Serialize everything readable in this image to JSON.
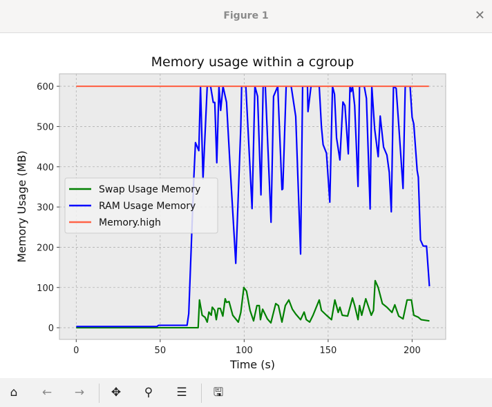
{
  "window": {
    "title": "Figure 1",
    "close_icon": "close-icon"
  },
  "toolbar": {
    "buttons": [
      "home-icon",
      "back-arrow-icon",
      "forward-arrow-icon",
      "pan-move-icon",
      "zoom-magnifier-icon",
      "configure-subplots-icon",
      "save-floppy-icon"
    ]
  },
  "chart_data": {
    "type": "line",
    "title": "Memory usage within a cgroup",
    "xlabel": "Time (s)",
    "ylabel": "Memory Usage (MB)",
    "xlim": [
      -10,
      220
    ],
    "ylim": [
      -29,
      631
    ],
    "xticks": [
      0,
      50,
      100,
      150,
      200
    ],
    "yticks": [
      0,
      100,
      200,
      300,
      400,
      500,
      600
    ],
    "grid": true,
    "legend_position": "center-left",
    "series": [
      {
        "name": "Swap Usage Memory",
        "color": "#008000",
        "points": [
          [
            0,
            0
          ],
          [
            72.6,
            0
          ],
          [
            73.4,
            69
          ],
          [
            75,
            31
          ],
          [
            76.7,
            26
          ],
          [
            78,
            14
          ],
          [
            79,
            39
          ],
          [
            80.4,
            31
          ],
          [
            81,
            51
          ],
          [
            82.5,
            43
          ],
          [
            83.4,
            20
          ],
          [
            84.5,
            48
          ],
          [
            85.8,
            48
          ],
          [
            87.3,
            29
          ],
          [
            88.7,
            72
          ],
          [
            89.5,
            63
          ],
          [
            91,
            65
          ],
          [
            93.2,
            31
          ],
          [
            96.5,
            14
          ],
          [
            98,
            38
          ],
          [
            99.8,
            100
          ],
          [
            101.4,
            91
          ],
          [
            103.5,
            43
          ],
          [
            105.6,
            17
          ],
          [
            107.6,
            55
          ],
          [
            109,
            55
          ],
          [
            109.7,
            20
          ],
          [
            111,
            46
          ],
          [
            113.8,
            22
          ],
          [
            115.9,
            12
          ],
          [
            118.8,
            60
          ],
          [
            120.4,
            55
          ],
          [
            122.5,
            14
          ],
          [
            124.5,
            55
          ],
          [
            126.6,
            69
          ],
          [
            128.7,
            46
          ],
          [
            130.7,
            34
          ],
          [
            133.6,
            20
          ],
          [
            135.7,
            39
          ],
          [
            137,
            20
          ],
          [
            139,
            14
          ],
          [
            141,
            31
          ],
          [
            144.7,
            69
          ],
          [
            146,
            43
          ],
          [
            149,
            31
          ],
          [
            152,
            20
          ],
          [
            154,
            69
          ],
          [
            156,
            38
          ],
          [
            157,
            51
          ],
          [
            158.4,
            31
          ],
          [
            161.6,
            29
          ],
          [
            164.5,
            74
          ],
          [
            165.8,
            55
          ],
          [
            167.8,
            20
          ],
          [
            168.7,
            55
          ],
          [
            170,
            31
          ],
          [
            172.4,
            72
          ],
          [
            175.7,
            31
          ],
          [
            177,
            43
          ],
          [
            178,
            117
          ],
          [
            179.8,
            100
          ],
          [
            182.3,
            60
          ],
          [
            185,
            51
          ],
          [
            188,
            38
          ],
          [
            189.7,
            57
          ],
          [
            192,
            29
          ],
          [
            194.6,
            22
          ],
          [
            197,
            69
          ],
          [
            199.6,
            69
          ],
          [
            201,
            31
          ],
          [
            203.7,
            26
          ],
          [
            205.4,
            20
          ],
          [
            210.3,
            17
          ]
        ]
      },
      {
        "name": "RAM Usage Memory",
        "color": "#0000ff",
        "points": [
          [
            0,
            3
          ],
          [
            48,
            3
          ],
          [
            49,
            6
          ],
          [
            66,
            6
          ],
          [
            67,
            35
          ],
          [
            70,
            370
          ],
          [
            71,
            460
          ],
          [
            73,
            440
          ],
          [
            74,
            600
          ],
          [
            75.5,
            370
          ],
          [
            78,
            600
          ],
          [
            80,
            600
          ],
          [
            81.6,
            560
          ],
          [
            82.5,
            560
          ],
          [
            83.7,
            410
          ],
          [
            85,
            600
          ],
          [
            86,
            540
          ],
          [
            87.4,
            600
          ],
          [
            89.5,
            560
          ],
          [
            91.5,
            410
          ],
          [
            95,
            160
          ],
          [
            98,
            500
          ],
          [
            98.5,
            600
          ],
          [
            101,
            600
          ],
          [
            104.7,
            296
          ],
          [
            106.4,
            600
          ],
          [
            108,
            575
          ],
          [
            110,
            330
          ],
          [
            111.3,
            600
          ],
          [
            112.6,
            600
          ],
          [
            116,
            262
          ],
          [
            117.5,
            575
          ],
          [
            120,
            600
          ],
          [
            122.5,
            343
          ],
          [
            123,
            345
          ],
          [
            125,
            600
          ],
          [
            128,
            600
          ],
          [
            130.7,
            525
          ],
          [
            133.6,
            183
          ],
          [
            134.8,
            600
          ],
          [
            137.7,
            600
          ],
          [
            138,
            537
          ],
          [
            139.8,
            600
          ],
          [
            144.7,
            600
          ],
          [
            146,
            500
          ],
          [
            147,
            455
          ],
          [
            149,
            434
          ],
          [
            151,
            312
          ],
          [
            152.6,
            600
          ],
          [
            153.8,
            580
          ],
          [
            155,
            472
          ],
          [
            157,
            417
          ],
          [
            158.8,
            561
          ],
          [
            160,
            552
          ],
          [
            162,
            432
          ],
          [
            163,
            600
          ],
          [
            163.7,
            587
          ],
          [
            164.5,
            600
          ],
          [
            165.8,
            552
          ],
          [
            167.8,
            351
          ],
          [
            168.7,
            600
          ],
          [
            171.5,
            600
          ],
          [
            172.8,
            570
          ],
          [
            175,
            295
          ],
          [
            176,
            600
          ],
          [
            177.7,
            494
          ],
          [
            179.8,
            425
          ],
          [
            181,
            526
          ],
          [
            183,
            449
          ],
          [
            185,
            429
          ],
          [
            186.4,
            386
          ],
          [
            187.6,
            288
          ],
          [
            188.9,
            600
          ],
          [
            190.5,
            595
          ],
          [
            192,
            506
          ],
          [
            194.6,
            346
          ],
          [
            195.9,
            600
          ],
          [
            198.8,
            600
          ],
          [
            200,
            523
          ],
          [
            201,
            506
          ],
          [
            203,
            391
          ],
          [
            203.7,
            374
          ],
          [
            205,
            218
          ],
          [
            206.6,
            203
          ],
          [
            208.6,
            203
          ],
          [
            210.3,
            103
          ]
        ]
      },
      {
        "name": "Memory.high",
        "color": "#ff6347",
        "points": [
          [
            0,
            600
          ],
          [
            210,
            600
          ]
        ]
      }
    ]
  }
}
